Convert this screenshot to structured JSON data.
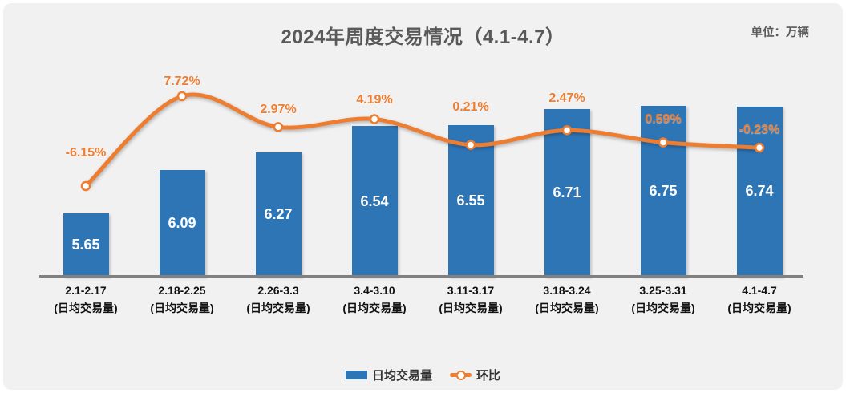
{
  "title": "2024年周度交易情况（4.1-4.7）",
  "unit_label": "单位：万辆",
  "legend": {
    "bar": "日均交易量",
    "line": "环比"
  },
  "colors": {
    "bar": "#2E75B6",
    "line": "#ED7D31",
    "percent_label": "#ED7D31",
    "bar_value_label": "#FFFFFF",
    "title_text": "#595959",
    "axis_line": "#808080",
    "x_label_text": "#111111",
    "panel_bg": "#F1F1F2"
  },
  "chart_data": {
    "type": "combo",
    "title": "2024年周度交易情况（4.1-4.7）",
    "unit": "万辆",
    "categories": [
      "2.1-2.17",
      "2.18-2.25",
      "2.26-3.3",
      "3.4-3.10",
      "3.11-3.17",
      "3.18-3.24",
      "3.25-3.31",
      "4.1-4.7"
    ],
    "category_sublabel": "(日均交易量)",
    "series": [
      {
        "name": "日均交易量",
        "type": "bar",
        "values": [
          5.65,
          6.09,
          6.27,
          6.54,
          6.55,
          6.71,
          6.75,
          6.74
        ],
        "labels": [
          "5.65",
          "6.09",
          "6.27",
          "6.54",
          "6.55",
          "6.71",
          "6.75",
          "6.74"
        ]
      },
      {
        "name": "环比",
        "type": "line",
        "unit": "%",
        "values": [
          -6.15,
          7.72,
          2.97,
          4.19,
          0.21,
          2.47,
          0.59,
          -0.23
        ],
        "labels": [
          "-6.15%",
          "7.72%",
          "2.97%",
          "4.19%",
          "0.21%",
          "2.47%",
          "0.59%",
          "-0.23%"
        ]
      }
    ],
    "bar_axis_implied_min": 5.0,
    "grid": false,
    "legend_position": "bottom"
  }
}
